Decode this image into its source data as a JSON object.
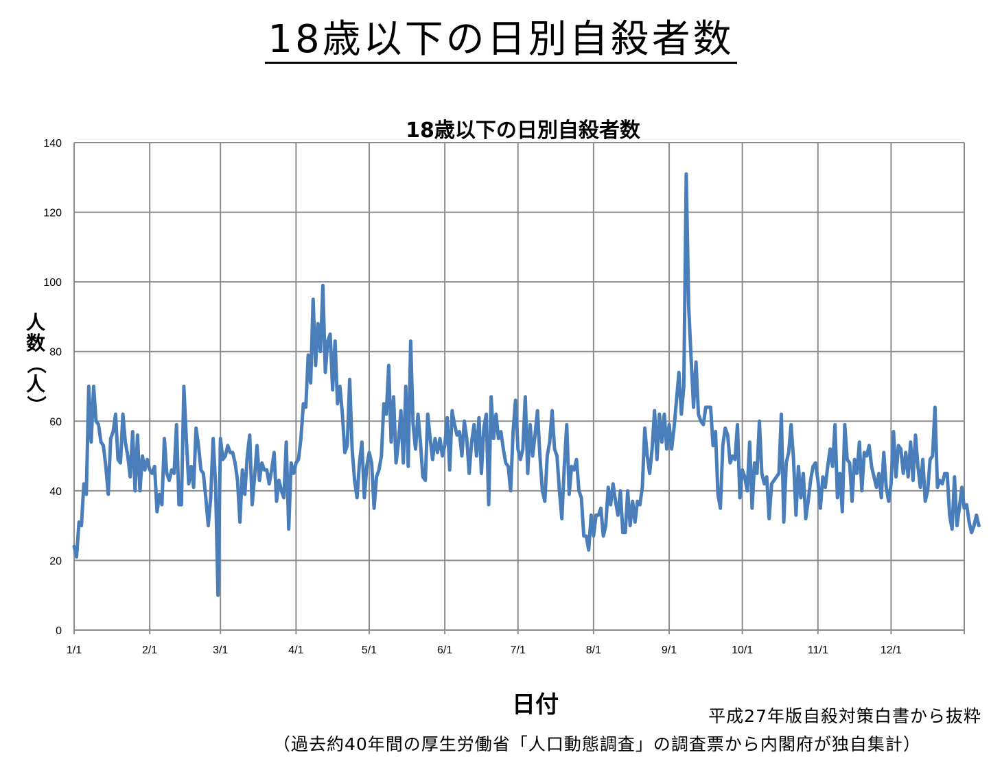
{
  "page": {
    "main_title": "18歳以下の日別自殺者数",
    "source": "平成27年版自殺対策白書から抜粋",
    "note": "（過去約40年間の厚生労働省「人口動態調査」の調査票から内閣府が独自集計）"
  },
  "chart_data": {
    "type": "line",
    "title": "18歳以下の日別自殺者数",
    "xlabel": "日付",
    "ylabel": "人数（人）",
    "ylim": [
      0,
      140
    ],
    "yticks": [
      0,
      20,
      40,
      60,
      80,
      100,
      120,
      140
    ],
    "xticks": [
      {
        "label": "1/1",
        "day": 1
      },
      {
        "label": "2/1",
        "day": 32
      },
      {
        "label": "3/1",
        "day": 61
      },
      {
        "label": "4/1",
        "day": 92
      },
      {
        "label": "5/1",
        "day": 122
      },
      {
        "label": "6/1",
        "day": 153
      },
      {
        "label": "7/1",
        "day": 183
      },
      {
        "label": "8/1",
        "day": 214
      },
      {
        "label": "9/1",
        "day": 245
      },
      {
        "label": "10/1",
        "day": 275
      },
      {
        "label": "11/1",
        "day": 306
      },
      {
        "label": "12/1",
        "day": 336
      }
    ],
    "x_unit": "day of year (1/1 = 1, 366 days incl. 2/29)",
    "grid": true,
    "legend": "none",
    "line_color": "#4A7EBB",
    "grid_color": "#8c8c8c",
    "series": [
      {
        "values": [
          24,
          21,
          31,
          30,
          42,
          39,
          70,
          54,
          70,
          60,
          59,
          54,
          53,
          47,
          39,
          55,
          57,
          62,
          49,
          48,
          62,
          54,
          50,
          44,
          57,
          40,
          56,
          40,
          50,
          46,
          49,
          46,
          45,
          47,
          34,
          39,
          36,
          55,
          45,
          43,
          46,
          45,
          59,
          36,
          36,
          70,
          55,
          42,
          47,
          41,
          58,
          53,
          46,
          45,
          38,
          30,
          38,
          55,
          42,
          10,
          55,
          49,
          50,
          53,
          51,
          51,
          48,
          43,
          31,
          46,
          39,
          50,
          56,
          36,
          44,
          53,
          43,
          48,
          46,
          46,
          42,
          46,
          51,
          37,
          43,
          40,
          38,
          54,
          29,
          48,
          45,
          48,
          49,
          55,
          65,
          64,
          79,
          71,
          95,
          76,
          88,
          80,
          99,
          74,
          83,
          85,
          69,
          83,
          65,
          70,
          62,
          51,
          53,
          72,
          52,
          43,
          38,
          48,
          54,
          38,
          47,
          51,
          48,
          35,
          44,
          46,
          50,
          65,
          62,
          76,
          54,
          67,
          48,
          54,
          63,
          48,
          70,
          47,
          83,
          59,
          52,
          62,
          54,
          44,
          43,
          62,
          55,
          49,
          55,
          51,
          55,
          50,
          53,
          61,
          46,
          63,
          59,
          56,
          57,
          50,
          60,
          55,
          45,
          54,
          59,
          50,
          61,
          45,
          58,
          62,
          36,
          67,
          55,
          62,
          55,
          57,
          52,
          48,
          47,
          40,
          57,
          66,
          52,
          49,
          52,
          67,
          45,
          59,
          50,
          56,
          63,
          50,
          40,
          37,
          50,
          54,
          63,
          52,
          50,
          40,
          32,
          47,
          59,
          39,
          47,
          46,
          49,
          40,
          38,
          27,
          27,
          23,
          33,
          27,
          33,
          33,
          35,
          27,
          30,
          41,
          36,
          42,
          37,
          33,
          40,
          28,
          28,
          40,
          30,
          37,
          31,
          37,
          36,
          41,
          58,
          50,
          45,
          52,
          63,
          49,
          62,
          54,
          62,
          52,
          59,
          52,
          58,
          66,
          74,
          62,
          70,
          131,
          93,
          78,
          64,
          77,
          62,
          60,
          59,
          64,
          64,
          64,
          53,
          57,
          39,
          35,
          53,
          58,
          56,
          48,
          50,
          49,
          59,
          38,
          46,
          44,
          40,
          54,
          35,
          48,
          45,
          60,
          45,
          42,
          44,
          32,
          42,
          43,
          44,
          45,
          62,
          31,
          48,
          51,
          59,
          49,
          33,
          47,
          38,
          45,
          32,
          37,
          43,
          47,
          48,
          43,
          35,
          44,
          41,
          47,
          52,
          47,
          59,
          38,
          45,
          34,
          59,
          49,
          48,
          37,
          49,
          45,
          54,
          40,
          51,
          50,
          53,
          47,
          44,
          41,
          45,
          38,
          51,
          41,
          37,
          42,
          57,
          44,
          53,
          52,
          45,
          51,
          44,
          54,
          43,
          56,
          47,
          41,
          49,
          37,
          40,
          49,
          50,
          64,
          41,
          43,
          42,
          45,
          45,
          33,
          29,
          44,
          30,
          35,
          41,
          35,
          36,
          31,
          28,
          30,
          33,
          30
        ]
      }
    ]
  }
}
